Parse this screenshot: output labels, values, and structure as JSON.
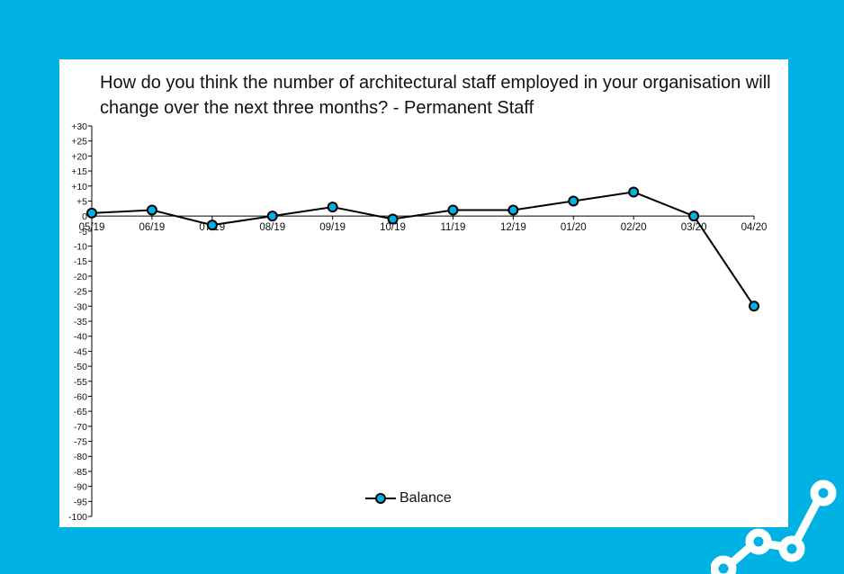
{
  "colors": {
    "background": "#00b2e3",
    "card": "#ffffff",
    "line": "#000000",
    "marker_fill": "#00b2e3",
    "text": "#111111"
  },
  "chart_data": {
    "type": "line",
    "title": "How do you think the number of architectural staff employed in your organisation will change over the next three months? - Permanent Staff",
    "xlabel": "",
    "ylabel": "",
    "categories": [
      "05/19",
      "06/19",
      "07/19",
      "08/19",
      "09/19",
      "10/19",
      "11/19",
      "12/19",
      "01/20",
      "02/20",
      "03/20",
      "04/20"
    ],
    "series": [
      {
        "name": "Balance",
        "values": [
          1,
          2,
          -3,
          0,
          3,
          -1,
          2,
          2,
          5,
          8,
          0,
          -30
        ]
      }
    ],
    "ylim": [
      -100,
      30
    ],
    "yticks": [
      "+30",
      "+25",
      "+20",
      "+15",
      "+10",
      "+5",
      "0",
      "-5",
      "-10",
      "-15",
      "-20",
      "-25",
      "-30",
      "-35",
      "-40",
      "-45",
      "-50",
      "-55",
      "-60",
      "-65",
      "-70",
      "-75",
      "-80",
      "-85",
      "-90",
      "-95",
      "-100"
    ],
    "grid": false,
    "legend_position": "bottom-center",
    "marker": "circle"
  },
  "decoration": {
    "icon": "growth-chart-icon"
  }
}
